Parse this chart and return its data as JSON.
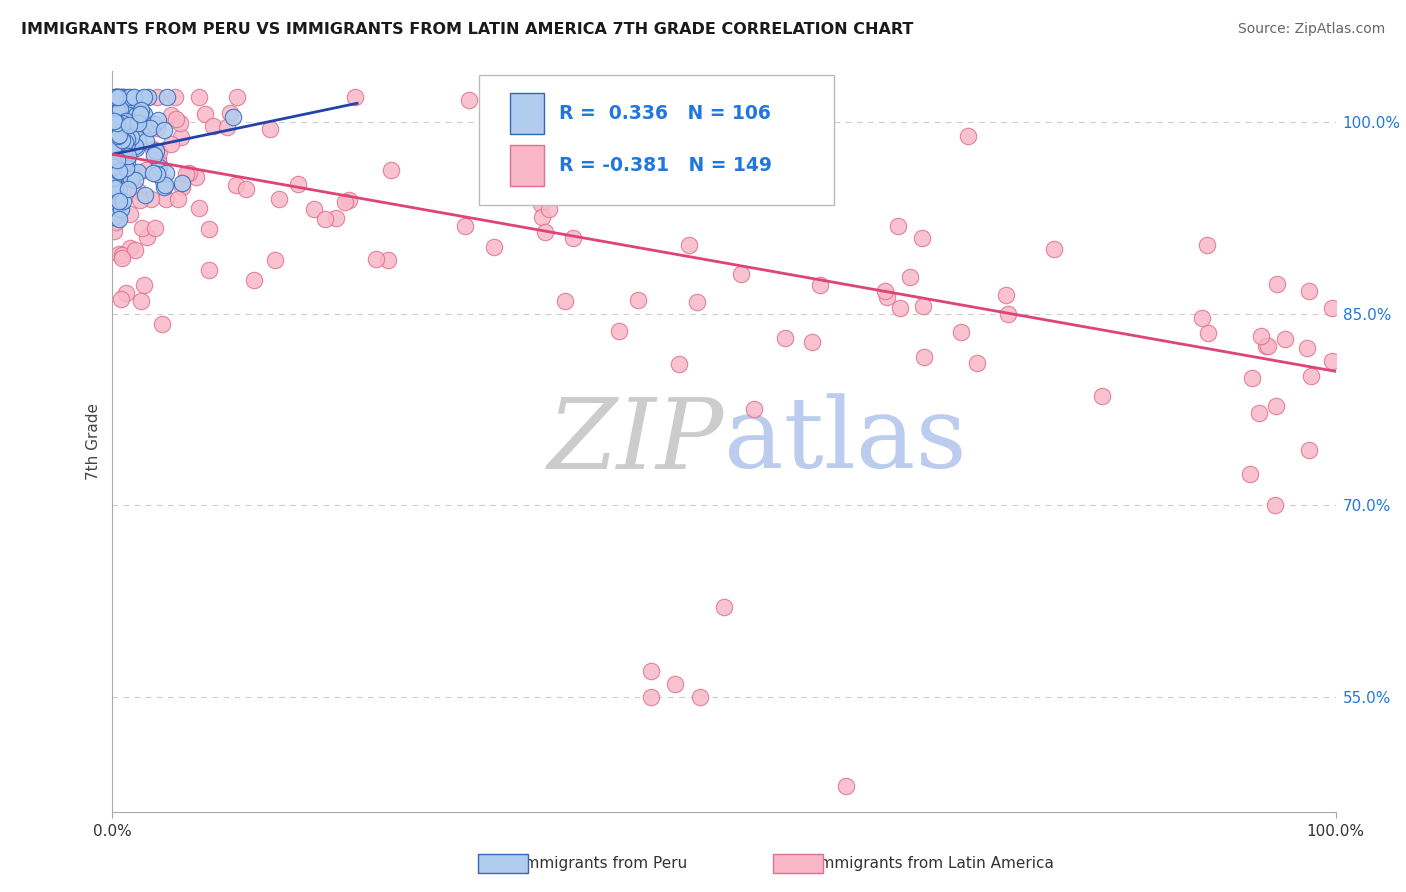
{
  "title": "IMMIGRANTS FROM PERU VS IMMIGRANTS FROM LATIN AMERICA 7TH GRADE CORRELATION CHART",
  "source": "Source: ZipAtlas.com",
  "ylabel": "7th Grade",
  "ytick_vals": [
    55.0,
    70.0,
    85.0,
    100.0
  ],
  "xlim": [
    0.0,
    100.0
  ],
  "ylim": [
    46.0,
    104.0
  ],
  "blue_R": 0.336,
  "blue_N": 106,
  "pink_R": -0.381,
  "pink_N": 149,
  "blue_face_color": "#b0ccee",
  "blue_edge_color": "#3366bb",
  "pink_face_color": "#f8b8c8",
  "pink_edge_color": "#e07090",
  "blue_line_color": "#2244aa",
  "pink_line_color": "#dd4477",
  "legend_num_color": "#2277dd",
  "legend_label_color": "#333333",
  "ytick_color": "#2277dd",
  "watermark_zip_color": "#cccccc",
  "watermark_atlas_color": "#bbccee",
  "background_color": "#ffffff",
  "title_fontsize": 11.5,
  "source_fontsize": 10,
  "tick_fontsize": 11,
  "legend_fontsize": 13.5,
  "marker_size": 140
}
